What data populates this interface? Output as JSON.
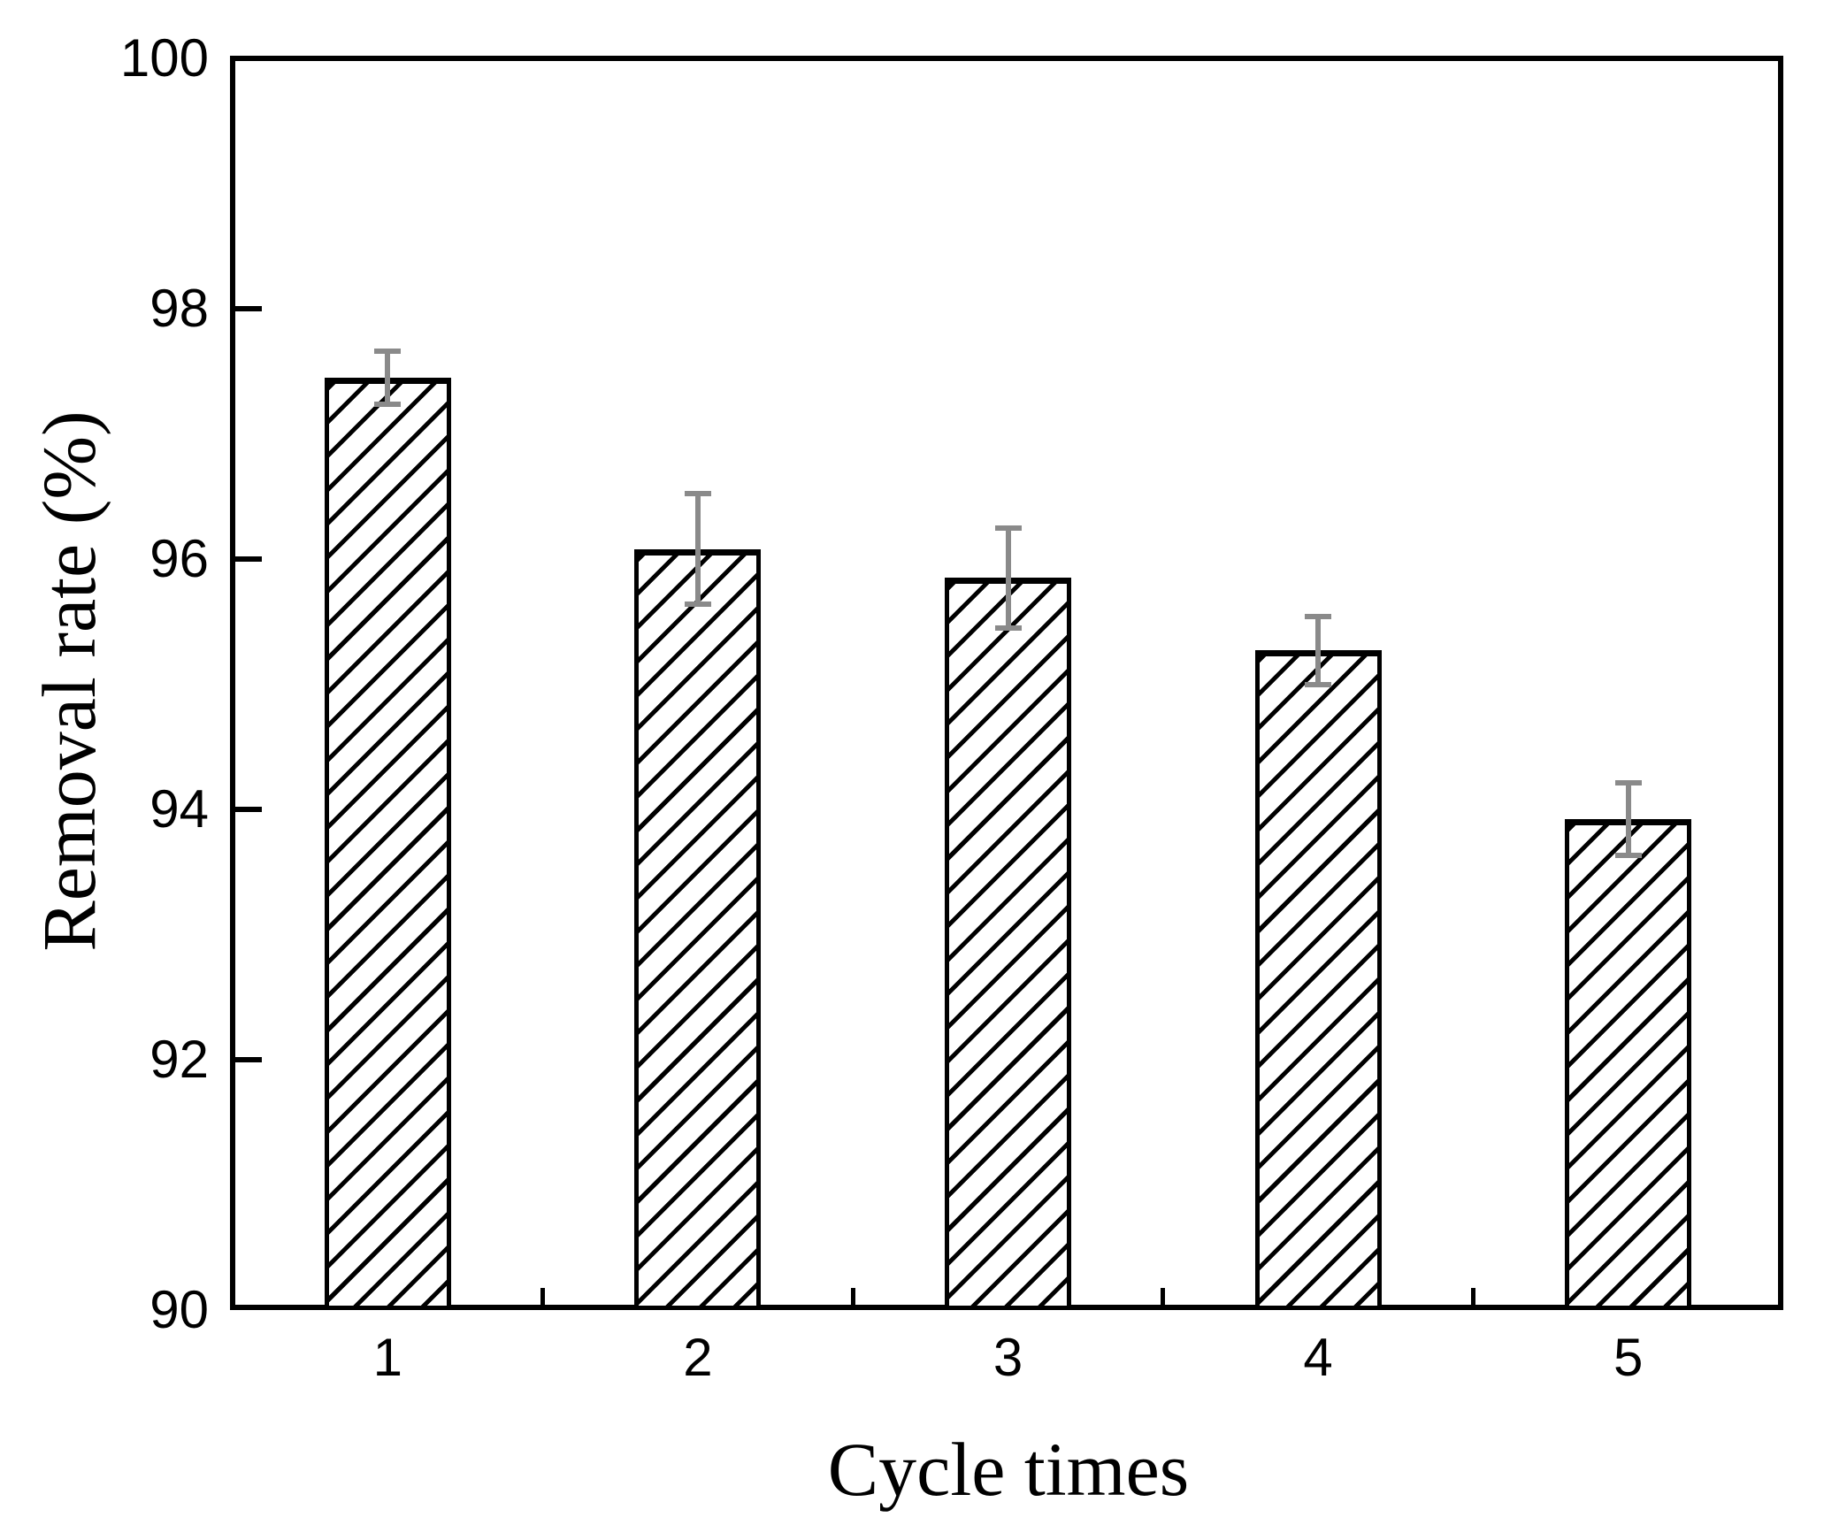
{
  "figure": {
    "background": "#ffffff",
    "axis_color": "#000000",
    "text_color": "#000000"
  },
  "chart_data": {
    "type": "bar",
    "title": "",
    "xlabel": "Cycle times",
    "ylabel": "Removal rate (%)",
    "categories": [
      "1",
      "2",
      "3",
      "4",
      "5"
    ],
    "values": [
      97.45,
      96.08,
      95.85,
      95.27,
      93.92
    ],
    "errors": [
      0.21,
      0.44,
      0.4,
      0.27,
      0.29
    ],
    "ylim": [
      90,
      100
    ],
    "yticks": [
      90,
      92,
      94,
      96,
      98,
      100
    ],
    "ytick_labels": [
      "90",
      "92",
      "94",
      "96",
      "98",
      "100"
    ],
    "grid": false,
    "legend": null,
    "frame": "full-box",
    "tick_direction": "in",
    "x_minor_ticks_between_categories": true,
    "bar_style": {
      "fill": "#ffffff",
      "hatch": "forward-diagonal",
      "edge_color": "#000000"
    },
    "error_bar_style": {
      "color": "#8a8a8a",
      "cap_width": 30
    }
  }
}
